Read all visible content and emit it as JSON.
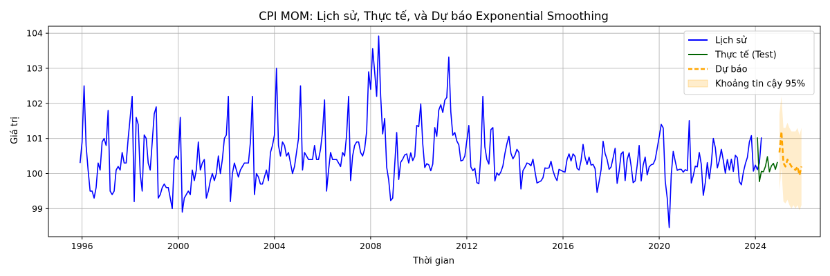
{
  "chart_data": {
    "type": "line",
    "title": "CPI MOM: Lịch sử, Thực tế, và Dự báo Exponential Smoothing",
    "xlabel": "Thời gian",
    "ylabel": "Giá trị",
    "xlim": [
      1994.6,
      2026.7
    ],
    "ylim": [
      98.2,
      104.2
    ],
    "x_ticks": [
      1996,
      2000,
      2004,
      2008,
      2012,
      2016,
      2020,
      2024
    ],
    "y_ticks": [
      99,
      100,
      101,
      102,
      103,
      104
    ],
    "grid": true,
    "legend_position": "top-right",
    "legend": [
      "Lịch sử",
      "Thực tế (Test)",
      "Dự báo",
      "Khoảng tin cậy 95%"
    ],
    "colors": {
      "history": "#0000ff",
      "actual": "#006400",
      "forecast": "#ffa500",
      "ci_fill": "#ffa500",
      "grid": "#b0b0b0"
    },
    "series": [
      {
        "name": "Lịch sử",
        "start": 1995.917,
        "step": 0.0833333,
        "values": [
          100.3,
          100.9,
          102.5,
          100.8,
          100.1,
          99.5,
          99.5,
          99.3,
          99.6,
          100.3,
          100.1,
          100.9,
          101.0,
          100.8,
          101.8,
          99.5,
          99.4,
          99.5,
          100.1,
          100.2,
          100.1,
          100.6,
          100.3,
          100.3,
          101.0,
          101.6,
          102.2,
          99.2,
          101.6,
          101.4,
          100.0,
          99.5,
          101.1,
          101.0,
          100.3,
          100.1,
          100.9,
          101.7,
          101.9,
          99.3,
          99.4,
          99.6,
          99.7,
          99.6,
          99.6,
          99.3,
          99.0,
          100.4,
          100.5,
          100.4,
          101.6,
          98.9,
          99.3,
          99.4,
          99.5,
          99.4,
          100.1,
          99.8,
          100.1,
          100.9,
          100.1,
          100.3,
          100.4,
          99.3,
          99.5,
          99.8,
          100.0,
          99.8,
          100.0,
          100.5,
          100.0,
          100.4,
          101.0,
          101.1,
          102.2,
          99.2,
          100.0,
          100.3,
          100.1,
          99.9,
          100.1,
          100.2,
          100.3,
          100.3,
          100.3,
          100.9,
          102.2,
          99.4,
          100.0,
          99.9,
          99.7,
          99.7,
          99.9,
          100.1,
          99.8,
          100.6,
          100.8,
          101.1,
          103.0,
          100.8,
          100.5,
          100.9,
          100.8,
          100.5,
          100.6,
          100.3,
          100.0,
          100.2,
          100.6,
          101.0,
          102.5,
          100.1,
          100.6,
          100.5,
          100.4,
          100.4,
          100.4,
          100.8,
          100.4,
          100.4,
          100.7,
          101.2,
          102.1,
          99.5,
          100.1,
          100.6,
          100.4,
          100.4,
          100.4,
          100.3,
          100.2,
          100.6,
          100.5,
          101.1,
          102.2,
          99.8,
          100.5,
          100.8,
          100.9,
          100.9,
          100.6,
          100.5,
          100.7,
          101.2,
          102.9,
          102.4,
          103.56,
          102.9,
          102.2,
          103.92,
          102.2,
          101.13,
          101.57,
          100.18,
          99.82,
          99.23,
          99.3,
          100.24,
          101.17,
          99.83,
          100.32,
          100.41,
          100.53,
          100.56,
          100.3,
          100.59,
          100.37,
          100.49,
          101.37,
          101.34,
          101.98,
          100.85,
          100.17,
          100.28,
          100.25,
          100.08,
          100.27,
          101.31,
          101.06,
          101.81,
          101.96,
          101.74,
          102.09,
          102.17,
          103.32,
          101.76,
          101.09,
          101.17,
          100.93,
          100.82,
          100.36,
          100.38,
          100.5,
          100.94,
          101.37,
          100.19,
          100.08,
          100.15,
          99.74,
          99.71,
          100.54,
          102.2,
          100.76,
          100.4,
          100.27,
          101.25,
          101.31,
          99.79,
          100.02,
          99.95,
          100.05,
          100.22,
          100.57,
          100.85,
          101.06,
          100.58,
          100.42,
          100.52,
          100.69,
          100.6,
          99.56,
          100.08,
          100.18,
          100.3,
          100.28,
          100.22,
          100.41,
          100.06,
          99.73,
          99.76,
          99.79,
          99.88,
          100.16,
          100.15,
          100.16,
          100.35,
          100.08,
          99.91,
          99.8,
          100.12,
          100.09,
          100.06,
          100.04,
          100.4,
          100.56,
          100.36,
          100.56,
          100.49,
          100.15,
          100.1,
          100.37,
          100.83,
          100.46,
          100.26,
          100.47,
          100.24,
          100.26,
          100.14,
          99.46,
          99.77,
          100.11,
          100.92,
          100.57,
          100.4,
          100.12,
          100.19,
          100.45,
          100.72,
          99.72,
          100.07,
          100.56,
          100.62,
          99.8,
          100.4,
          100.59,
          100.21,
          99.74,
          99.79,
          100.23,
          100.8,
          99.79,
          100.24,
          100.47,
          99.96,
          100.19,
          100.25,
          100.27,
          100.4,
          100.72,
          101.05,
          101.4,
          101.3,
          99.79,
          99.3,
          98.46,
          99.96,
          100.63,
          100.35,
          100.09,
          100.12,
          100.12,
          100.04,
          100.11,
          100.08,
          101.51,
          99.73,
          99.94,
          100.21,
          100.19,
          100.6,
          100.26,
          99.38,
          99.74,
          100.31,
          99.85,
          100.28,
          101.0,
          100.74,
          100.16,
          100.37,
          100.69,
          100.37,
          100.01,
          100.4,
          100.1,
          100.41,
          100.06,
          100.52,
          100.45,
          99.77,
          99.68,
          100.04,
          100.28,
          100.46,
          100.9,
          101.08,
          100.07,
          100.24,
          100.11,
          100.3,
          101.03
        ]
      },
      {
        "name": "Thực tế (Test)",
        "start": 2024.083,
        "step": 0.0833333,
        "values": [
          101.03,
          99.77,
          100.06,
          100.05,
          100.2,
          100.48,
          100.05,
          100.22,
          100.29,
          100.12,
          100.33
        ]
      },
      {
        "name": "Dự báo",
        "start": 2025.0,
        "step": 0.0833333,
        "values": [
          100.6,
          101.2,
          100.3,
          100.2,
          100.4,
          100.3,
          100.2,
          100.15,
          100.1,
          100.2,
          99.95,
          100.2
        ]
      },
      {
        "name": "Khoảng tin cậy 95%",
        "start": 2025.0,
        "step": 0.0833333,
        "lower": [
          99.5,
          100.15,
          99.2,
          99.15,
          99.25,
          99.1,
          99.0,
          99.1,
          99.0,
          99.1,
          98.95,
          99.1
        ],
        "upper": [
          101.7,
          102.2,
          101.3,
          101.3,
          101.45,
          101.3,
          101.2,
          101.2,
          101.2,
          101.3,
          101.1,
          101.3
        ]
      }
    ]
  }
}
